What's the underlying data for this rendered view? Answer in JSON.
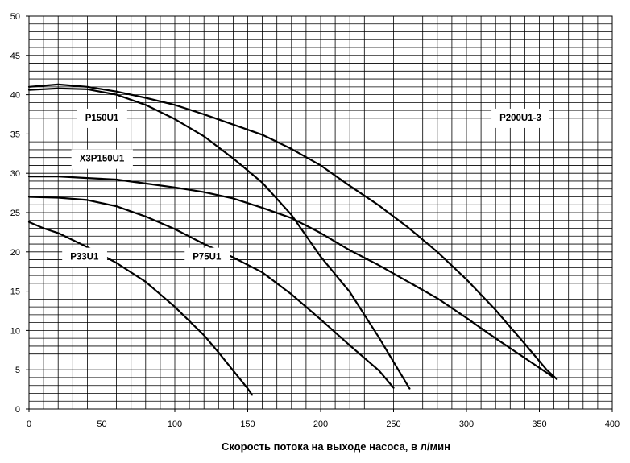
{
  "chart_data": {
    "type": "line",
    "xlabel": "Скорость потока на выходе насоса, в л/мин",
    "ylabel": "",
    "xlim": [
      0,
      400
    ],
    "ylim": [
      0,
      50
    ],
    "x_ticks": [
      0,
      50,
      100,
      150,
      200,
      250,
      300,
      350,
      400
    ],
    "y_ticks": [
      0,
      5,
      10,
      15,
      20,
      25,
      30,
      35,
      40,
      45,
      50
    ],
    "grid": true,
    "legend": "none",
    "series": [
      {
        "name": "P200U1-3",
        "label_at": [
          337,
          37
        ],
        "x": [
          0,
          20,
          40,
          60,
          80,
          100,
          120,
          140,
          160,
          180,
          200,
          220,
          240,
          260,
          280,
          300,
          320,
          340,
          355,
          362
        ],
        "y": [
          41,
          41.3,
          41,
          40.4,
          39.6,
          38.7,
          37.5,
          36.2,
          34.9,
          33.1,
          31.0,
          28.4,
          25.9,
          23.1,
          20.0,
          16.5,
          12.6,
          8.3,
          5.0,
          3.8
        ]
      },
      {
        "name": "P150U1",
        "label_at": [
          50,
          37
        ],
        "x": [
          0,
          20,
          40,
          60,
          80,
          100,
          120,
          140,
          160,
          180,
          200,
          220,
          240,
          250,
          261
        ],
        "y": [
          40.6,
          40.8,
          40.7,
          40.0,
          38.7,
          36.9,
          34.7,
          31.9,
          28.8,
          24.7,
          19.4,
          14.9,
          9.1,
          6.0,
          2.6
        ]
      },
      {
        "name": "X3P150U1",
        "label_at": [
          50,
          31.8
        ],
        "x": [
          0,
          20,
          40,
          60,
          80,
          100,
          120,
          140,
          160,
          180,
          200,
          220,
          240,
          260,
          280,
          300,
          320,
          340,
          352,
          360
        ],
        "y": [
          29.6,
          29.6,
          29.4,
          29.2,
          28.7,
          28.2,
          27.6,
          26.8,
          25.6,
          24.3,
          22.4,
          20.2,
          18.3,
          16.2,
          14.1,
          11.6,
          9.0,
          6.5,
          5.0,
          4.0
        ]
      },
      {
        "name": "P75U1",
        "label_at": [
          122,
          19.3
        ],
        "x": [
          0,
          20,
          40,
          60,
          80,
          100,
          120,
          140,
          160,
          180,
          200,
          220,
          240,
          250
        ],
        "y": [
          27.0,
          26.9,
          26.6,
          25.8,
          24.5,
          22.9,
          21.0,
          19.3,
          17.4,
          14.6,
          11.4,
          8.1,
          4.9,
          2.7
        ]
      },
      {
        "name": "P33U1",
        "label_at": [
          38,
          19.3
        ],
        "x": [
          0,
          10,
          20,
          40,
          60,
          80,
          100,
          120,
          130,
          140,
          150,
          153
        ],
        "y": [
          23.8,
          23.0,
          22.4,
          20.6,
          18.6,
          16.2,
          13.0,
          9.4,
          7.2,
          4.9,
          2.6,
          1.8
        ]
      }
    ]
  }
}
